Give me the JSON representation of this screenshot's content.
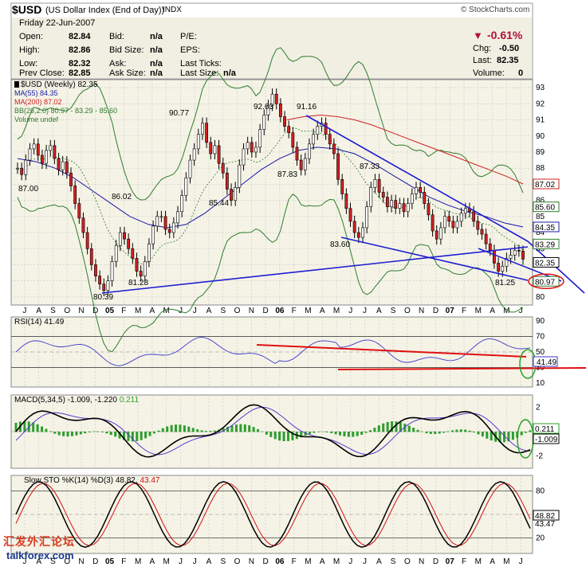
{
  "header": {
    "symbol": "$USD",
    "name": "(US Dollar Index (End of Day))",
    "exchange": "INDX",
    "copyright": "© StockCharts.com",
    "date": "Friday   22-Jun-2007",
    "fields": {
      "open_label": "Open:",
      "open": "82.84",
      "high_label": "High:",
      "high": "82.86",
      "low_label": "Low:",
      "low": "82.32",
      "prev_label": "Prev Close:",
      "prev": "82.85",
      "bid_label": "Bid:",
      "bid": "n/a",
      "bidsize_label": "Bid Size:",
      "bidsize": "n/a",
      "ask_label": "Ask:",
      "ask": "n/a",
      "asksize_label": "Ask Size:",
      "asksize": "n/a",
      "pe_label": "P/E:",
      "eps_label": "EPS:",
      "lastticks_label": "Last Ticks:",
      "lastsize_label": "Last Size:",
      "lastsize": "n/a",
      "change_pct": "-0.61%",
      "chg_label": "Chg:",
      "chg": "-0.50",
      "last_label": "Last:",
      "last": "82.35",
      "volume_label": "Volume:",
      "volume": "0"
    }
  },
  "legend": {
    "price": "$USD (Weekly) 82.35",
    "ma55": "MA(55) 84.35",
    "ma200": "MA(200) 87.02",
    "bb": "BB(26,2.0) 80.97 - 83.29 - 85.60",
    "volume": "Volume undef"
  },
  "colors": {
    "panel_bg": "#f5f3e6",
    "grid": "#c8c8c8",
    "ma55": "#1a1aa6",
    "ma200": "#cc2222",
    "bb": "#2e7d2e",
    "trendline": "#1f1fd0",
    "red_annotation": "#e01010",
    "green_annotation": "#20a020"
  },
  "price_axis": [
    "93",
    "92",
    "91",
    "90",
    "89",
    "88",
    "87",
    "86",
    "85",
    "84",
    "83",
    "82",
    "81",
    "80"
  ],
  "price_tags": [
    {
      "text": "87.02",
      "color": "#cc2222"
    },
    {
      "text": "85.60",
      "color": "#2e7d2e"
    },
    {
      "text": "84.35",
      "color": "#1a1aa6"
    },
    {
      "text": "83.29",
      "color": "#2e7d2e"
    },
    {
      "text": "82.35",
      "color": "#000000"
    },
    {
      "text": "80.97",
      "color": "#2e7d2e"
    }
  ],
  "price_annotations": [
    "92.63",
    "91.16",
    "90.77",
    "87.83",
    "87.33",
    "87.00",
    "86.02",
    "85.44",
    "83.60",
    "81.28",
    "81.25",
    "80.39"
  ],
  "x_axis": [
    "J",
    "A",
    "S",
    "O",
    "N",
    "D",
    "05",
    "F",
    "M",
    "A",
    "M",
    "J",
    "J",
    "A",
    "S",
    "O",
    "N",
    "D",
    "06",
    "F",
    "M",
    "A",
    "M",
    "J",
    "J",
    "A",
    "S",
    "O",
    "N",
    "D",
    "07",
    "F",
    "M",
    "A",
    "M",
    "J"
  ],
  "rsi": {
    "label": "RSI(14) 41.49",
    "axis": [
      "90",
      "70",
      "50",
      "30",
      "10"
    ],
    "tag": "41.49"
  },
  "macd": {
    "label": "MACD(5,34,5) -1.009, -1.220",
    "label_hist": "0.211",
    "axis": [
      "2",
      "0",
      "-2"
    ],
    "tags": [
      "0.211",
      "-1.009"
    ]
  },
  "sto": {
    "label": "Slow STO %K(14) %D(3) 48.82,",
    "label_d": "43.47",
    "axis": [
      "80",
      "50",
      "20"
    ],
    "tags": [
      "48.82",
      "43.47"
    ]
  },
  "watermark": {
    "cn": "汇发外汇论坛",
    "site": "talkforex.com"
  },
  "chart_data": {
    "type": "line",
    "title": "$USD (Weekly)",
    "x_range": [
      "2004-07",
      "2007-06"
    ],
    "ylim": [
      79.5,
      93.5
    ],
    "series": [
      {
        "name": "$USD (Weekly)",
        "values": [
          88.0,
          87.6,
          88.5,
          89.2,
          89.5,
          88.8,
          88.3,
          89.1,
          89.4,
          88.6,
          87.9,
          88.4,
          87.7,
          86.9,
          85.8,
          84.9,
          84.0,
          83.0,
          82.0,
          81.3,
          80.8,
          80.4,
          81.0,
          82.2,
          83.2,
          84.0,
          83.6,
          83.0,
          82.4,
          81.6,
          81.3,
          82.2,
          83.3,
          84.4,
          85.0,
          85.0,
          84.2,
          84.0,
          84.6,
          85.3,
          86.3,
          87.4,
          88.5,
          89.2,
          90.1,
          90.8,
          89.6,
          88.9,
          89.4,
          88.3,
          87.7,
          86.7,
          86.0,
          86.8,
          88.2,
          89.2,
          89.6,
          89.0,
          89.3,
          90.4,
          91.3,
          91.9,
          92.6,
          92.0,
          91.2,
          90.6,
          90.2,
          89.3,
          88.5,
          87.9,
          88.6,
          89.5,
          90.1,
          90.6,
          90.8,
          90.1,
          89.5,
          88.9,
          87.3,
          86.4,
          85.5,
          84.7,
          84.0,
          83.7,
          84.3,
          85.6,
          86.8,
          87.3,
          86.5,
          86.2,
          85.6,
          86.0,
          85.5,
          85.8,
          85.3,
          85.8,
          86.4,
          86.8,
          86.5,
          85.8,
          85.1,
          84.1,
          83.6,
          84.3,
          85.0,
          84.7,
          84.3,
          84.7,
          85.2,
          85.5,
          85.3,
          84.7,
          84.2,
          83.9,
          83.3,
          82.9,
          82.1,
          81.6,
          81.9,
          82.4,
          82.6,
          82.9,
          82.85,
          82.35
        ]
      },
      {
        "name": "MA(55)",
        "values": [
          88.6,
          88.4,
          88.0,
          87.4,
          86.6,
          85.8,
          85.0,
          84.5,
          84.3,
          84.5,
          85.2,
          86.1,
          87.0,
          87.9,
          88.6,
          89.1,
          89.3,
          89.2,
          88.9,
          88.3,
          87.6,
          86.9,
          86.2,
          85.7,
          85.3,
          85.0,
          84.6,
          84.35
        ]
      },
      {
        "name": "MA(200)",
        "values": [
          91.0,
          91.2,
          91.3,
          91.2,
          91.0,
          90.7,
          90.3,
          89.9,
          89.5,
          89.1,
          88.7,
          88.3,
          87.9,
          87.5,
          87.02
        ]
      }
    ],
    "trendlines": [
      "91.16 to 83.29 (resistance)",
      "83.60 to 80.97 (support)",
      "80.39 to 83.29 (support)"
    ],
    "indicators": {
      "rsi_last": 41.49,
      "macd_last": -1.009,
      "macd_signal": -1.22,
      "macd_hist": 0.211,
      "sto_k": 48.82,
      "sto_d": 43.47
    }
  }
}
